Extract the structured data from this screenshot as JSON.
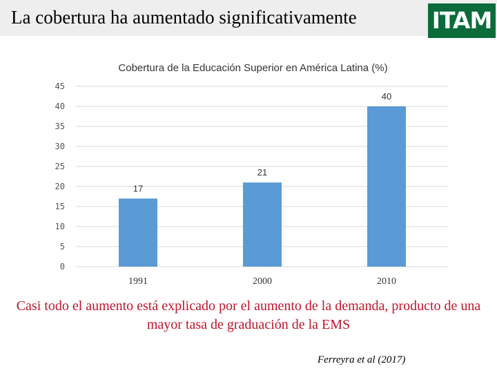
{
  "slide": {
    "title": "La cobertura ha aumentado significativamente",
    "logo_text": "ITAM",
    "note": "Casi todo el aumento está explicado por el aumento de la demanda, producto de una mayor tasa de graduación de la EMS",
    "citation": "Ferreyra et al (2017)"
  },
  "colors": {
    "bar": "#5b9bd5",
    "logo_bg": "#0b6b3a",
    "note_text": "#c0152a"
  },
  "chart_data": {
    "type": "bar",
    "title": "Cobertura de la Educación Superior en América Latina (%)",
    "xlabel": "",
    "ylabel": "",
    "categories": [
      "1991",
      "2000",
      "2010"
    ],
    "values": [
      17,
      21,
      40
    ],
    "ylim": [
      0,
      45
    ],
    "yticks": [
      0,
      5,
      10,
      15,
      20,
      25,
      30,
      35,
      40,
      45
    ],
    "grid": true,
    "legend": "none",
    "data_labels": true
  }
}
